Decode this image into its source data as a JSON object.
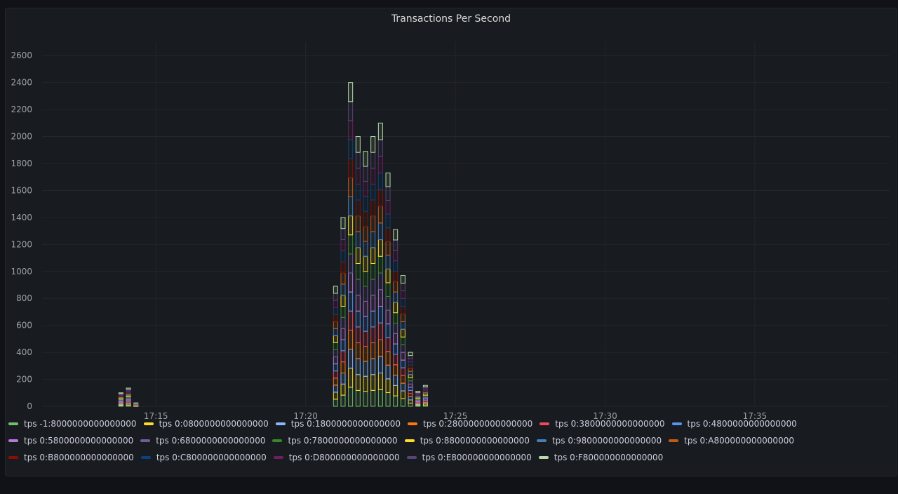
{
  "panel": {
    "title": "Transactions Per Second"
  },
  "chart_data": {
    "type": "bar",
    "stacked": true,
    "title": "Transactions Per Second",
    "xlabel": "",
    "ylabel": "",
    "ylim": [
      0,
      2700
    ],
    "yticks": [
      0,
      200,
      400,
      600,
      800,
      1000,
      1200,
      1400,
      1600,
      1800,
      2000,
      2200,
      2400,
      2600
    ],
    "x_range": [
      "17:11:12",
      "17:39:30"
    ],
    "x_ticks": [
      "17:15",
      "17:20",
      "17:25",
      "17:30",
      "17:35"
    ],
    "grid": true,
    "legend_position": "bottom",
    "series_names": [
      "tps -1:8000000000000000",
      "tps 0:0800000000000000",
      "tps 0:1800000000000000",
      "tps 0:2800000000000000",
      "tps 0:3800000000000000",
      "tps 0:4800000000000000",
      "tps 0:5800000000000000",
      "tps 0:6800000000000000",
      "tps 0:7800000000000000",
      "tps 0:8800000000000000",
      "tps 0:9800000000000000",
      "tps 0:A800000000000000",
      "tps 0:B800000000000000",
      "tps 0:C800000000000000",
      "tps 0:D800000000000000",
      "tps 0:E800000000000000",
      "tps 0:F800000000000000"
    ],
    "series_colors": [
      "#73bf69",
      "#fade2a",
      "#8ab8ff",
      "#ff780a",
      "#f2495c",
      "#5794f2",
      "#b877d9",
      "#705da0",
      "#37872d",
      "#fade2a",
      "#447ebc",
      "#c15c17",
      "#890f02",
      "#0a437c",
      "#6d1f62",
      "#584477",
      "#b7dbab"
    ],
    "bars": [
      {
        "t": "17:13:50",
        "total": 100
      },
      {
        "t": "17:14:05",
        "total": 135
      },
      {
        "t": "17:14:20",
        "total": 25
      },
      {
        "t": "17:21:00",
        "total": 890
      },
      {
        "t": "17:21:15",
        "total": 1400
      },
      {
        "t": "17:21:30",
        "total": 2400
      },
      {
        "t": "17:21:45",
        "total": 2000
      },
      {
        "t": "17:22:00",
        "total": 1890
      },
      {
        "t": "17:22:15",
        "total": 2000
      },
      {
        "t": "17:22:30",
        "total": 2100
      },
      {
        "t": "17:22:45",
        "total": 1730
      },
      {
        "t": "17:23:00",
        "total": 1310
      },
      {
        "t": "17:23:15",
        "total": 970
      },
      {
        "t": "17:23:30",
        "total": 400
      },
      {
        "t": "17:23:45",
        "total": 110
      },
      {
        "t": "17:24:00",
        "total": 155
      }
    ]
  }
}
